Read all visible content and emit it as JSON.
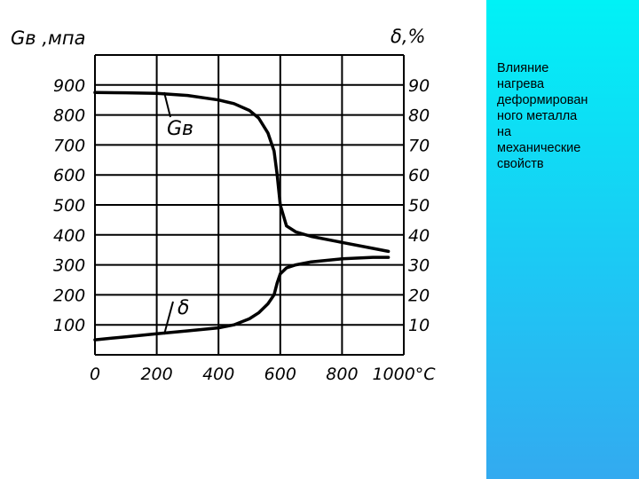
{
  "caption": "Влияние\nнагрева\nдеформирован\nного металла\nна\nмеханические\nсвойств",
  "chart_data": {
    "type": "line",
    "left_axis_title": "Gв ,мпа",
    "right_axis_title": "δ,%",
    "x_tick_labels": [
      "0",
      "200",
      "400",
      "600",
      "800",
      "1000°C"
    ],
    "left_tick_labels": [
      "100",
      "200",
      "300",
      "400",
      "500",
      "600",
      "700",
      "800",
      "900"
    ],
    "right_tick_labels": [
      "10",
      "20",
      "30",
      "40",
      "50",
      "60",
      "70",
      "80",
      "90"
    ],
    "x": [
      0,
      100,
      200,
      300,
      400,
      450,
      500,
      530,
      560,
      580,
      590,
      600,
      620,
      650,
      700,
      800,
      900,
      950
    ],
    "xlim": [
      0,
      1000
    ],
    "ylim_left": [
      0,
      1000
    ],
    "ylim_right": [
      0,
      100
    ],
    "grid": true,
    "series": [
      {
        "name": "Gв",
        "axis": "left",
        "color": "#000000",
        "values": [
          875,
          874,
          872,
          865,
          850,
          838,
          815,
          790,
          740,
          680,
          600,
          500,
          430,
          410,
          395,
          375,
          355,
          345
        ]
      },
      {
        "name": "δ",
        "axis": "right",
        "color": "#000000",
        "values": [
          5,
          6,
          7,
          8,
          9,
          10,
          12,
          14,
          17,
          20,
          24,
          27,
          29,
          30,
          31,
          32,
          32.5,
          32.5
        ]
      }
    ]
  }
}
